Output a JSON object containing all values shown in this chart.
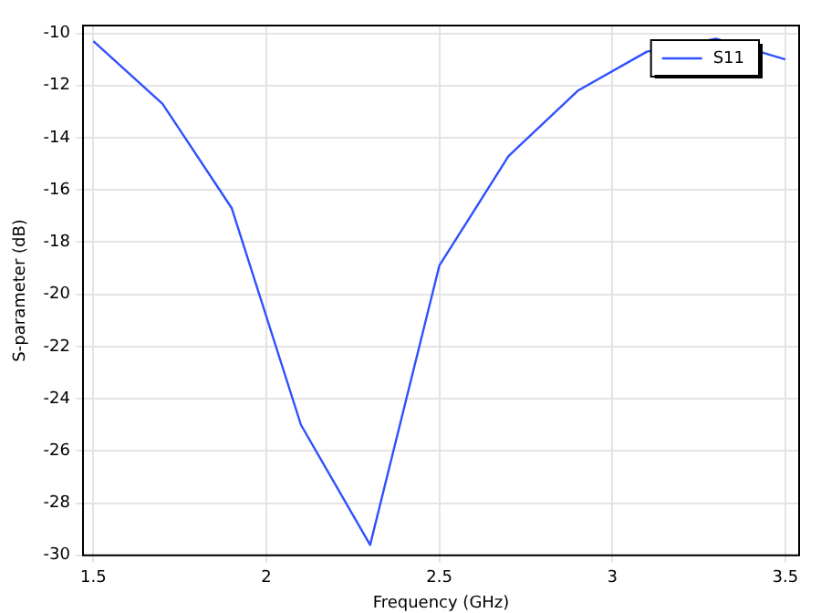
{
  "chart_data": {
    "type": "line",
    "xlabel": "Frequency (GHz)",
    "ylabel": "S-parameter (dB)",
    "x": [
      1.5,
      1.7,
      1.9,
      2.1,
      2.3,
      2.5,
      2.7,
      2.9,
      3.1,
      3.3,
      3.5
    ],
    "series": [
      {
        "name": "S11",
        "color": "#3050ff",
        "values": [
          -10.3,
          -12.7,
          -16.7,
          -25.0,
          -29.6,
          -18.9,
          -14.7,
          -12.2,
          -10.7,
          -10.2,
          -11.0
        ]
      }
    ],
    "xlim": [
      1.47,
      3.54
    ],
    "ylim": [
      -30,
      -9.7
    ],
    "xticks": [
      1.5,
      2,
      2.5,
      3,
      3.5
    ],
    "yticks": [
      -30,
      -28,
      -26,
      -24,
      -22,
      -20,
      -18,
      -16,
      -14,
      -12,
      -10
    ],
    "grid": true,
    "legend": "top right",
    "marker": "none",
    "line_style": "solid"
  }
}
